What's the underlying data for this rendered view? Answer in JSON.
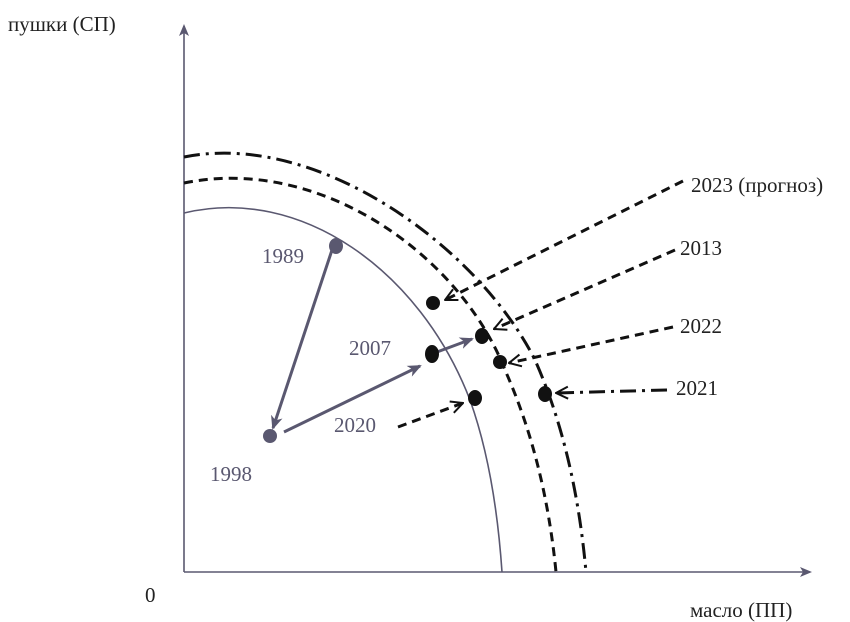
{
  "axes": {
    "y_label": "пушки (СП)",
    "x_label": "масло (ПП)",
    "origin": "0"
  },
  "years": {
    "y1989": "1989",
    "y1998": "1998",
    "y2007": "2007",
    "y2020": "2020",
    "y2021": "2021",
    "y2022": "2022",
    "y2013": "2013",
    "y2023": "2023 (прогноз)"
  },
  "colors": {
    "purple": "#5a5870",
    "black": "#111111"
  },
  "curves": {
    "inner": "solid",
    "middle": "dashed",
    "outer": "dash-dot"
  }
}
